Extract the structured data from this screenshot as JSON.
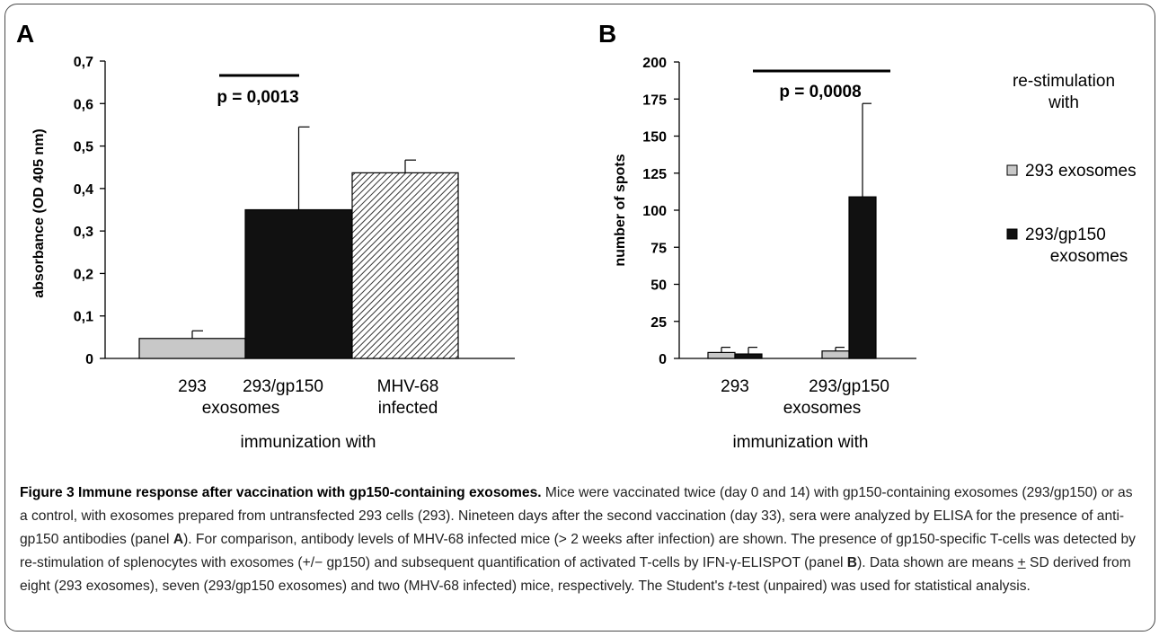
{
  "panels": {
    "a_letter": "A",
    "b_letter": "B"
  },
  "caption": {
    "title": "Figure 3 Immune response after vaccination with gp150-containing exosomes.",
    "text_1": "Mice were vaccinated twice (day 0 and 14) with gp150-containing exosomes (293/gp150) or as a control, with exosomes prepared from untransfected 293 cells (293). Nineteen days after the second vaccination (day 33), sera were analyzed by ELISA for the presence of anti-gp150 antibodies (panel ",
    "panel_a": "A",
    "text_2": "). For comparison, antibody levels of MHV-68 infected mice (> 2 weeks after infection) are shown. The presence of gp150-specific T-cells was detected by re-stimulation of splenocytes with exosomes (+/− gp150) and subsequent quantification of activated T-cells by IFN-γ-ELISPOT (panel ",
    "panel_b": "B",
    "text_3": "). Data shown are means ",
    "pm": "+",
    "text_4": " SD derived from eight (293 exosomes), seven (293/gp150 exosomes) and two (MHV-68 infected) mice, respectively. The Student's ",
    "t": "t",
    "text_5": "-test (unpaired) was used for statistical analysis."
  },
  "chart_data": [
    {
      "type": "bar",
      "panel": "A",
      "ylabel": "absorbance (OD 405 nm)",
      "xlabel": "immunization with",
      "ylim": [
        0,
        0.7
      ],
      "yticks": [
        "0",
        "0,1",
        "0,2",
        "0,3",
        "0,4",
        "0,5",
        "0,6",
        "0,7"
      ],
      "category_labels": [
        {
          "lines": [
            "293"
          ]
        },
        {
          "lines": [
            "293/gp150"
          ]
        },
        {
          "lines": [
            "MHV-68",
            "infected"
          ]
        }
      ],
      "group_label": "exosomes",
      "bars": [
        {
          "category": "293",
          "value": 0.047,
          "error": 0.018,
          "fill": "#c8c8c8"
        },
        {
          "category": "293/gp150",
          "value": 0.35,
          "error": 0.195,
          "fill": "#111111"
        },
        {
          "category": "MHV-68 infected",
          "value": 0.437,
          "error": 0.03,
          "fill": "hatched"
        }
      ],
      "annotation": "p = 0,0013"
    },
    {
      "type": "bar",
      "panel": "B",
      "ylabel": "number of spots",
      "xlabel": "immunization with",
      "ylim": [
        0,
        200
      ],
      "yticks": [
        "0",
        "25",
        "50",
        "75",
        "100",
        "125",
        "150",
        "175",
        "200"
      ],
      "categories": [
        "293",
        "293/gp150"
      ],
      "group_label": "exosomes",
      "series": [
        {
          "name": "293 exosomes",
          "values": [
            4,
            5
          ],
          "errors": [
            3.5,
            2.5
          ],
          "color": "#c8c8c8"
        },
        {
          "name": "293/gp150 exosomes",
          "values": [
            3,
            109
          ],
          "errors": [
            4.5,
            63
          ],
          "color": "#111111"
        }
      ],
      "annotation": "p = 0,0008",
      "legend_title": [
        "re-stimulation",
        "with"
      ],
      "legend_items": [
        {
          "lines": [
            "293 exosomes"
          ],
          "color": "#c8c8c8"
        },
        {
          "lines": [
            "293/gp150",
            "exosomes"
          ],
          "color": "#111111"
        }
      ],
      "legend_position": "right"
    }
  ]
}
